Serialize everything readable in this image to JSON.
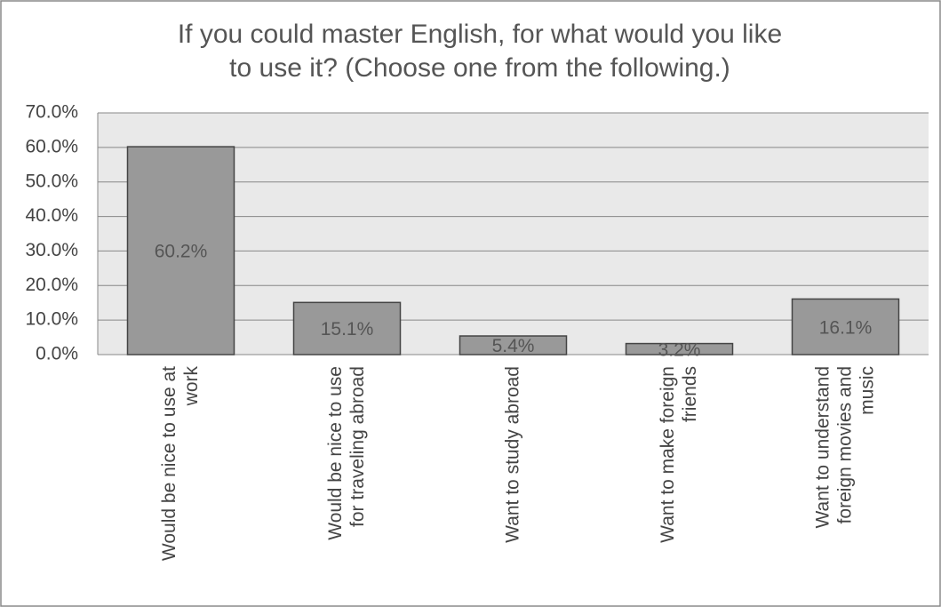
{
  "chart_data": {
    "type": "bar",
    "title": [
      "If you could master English, for what would  you like",
      "to use it? (Choose one from the following.)"
    ],
    "categories": [
      "Would be nice to use at work",
      "Would be nice to use for traveling abroad",
      "Want to study abroad",
      "Want to make foreign friends",
      "Want to understand foreign movies and music"
    ],
    "values": [
      60.2,
      15.1,
      5.4,
      3.2,
      16.1
    ],
    "value_labels": [
      "60.2%",
      "15.1%",
      "5.4%",
      "3.2%",
      "16.1%"
    ],
    "color": "#999999",
    "ylim": [
      0,
      70
    ],
    "yticks": [
      {
        "value": 0,
        "label": "0.0%"
      },
      {
        "value": 10,
        "label": "10.0%"
      },
      {
        "value": 20,
        "label": "20.0%"
      },
      {
        "value": 30,
        "label": "30.0%"
      },
      {
        "value": 40,
        "label": "40.0%"
      },
      {
        "value": 50,
        "label": "50.0%"
      },
      {
        "value": 60,
        "label": "60.0%"
      },
      {
        "value": 70,
        "label": "70.0%"
      }
    ],
    "grid": true
  }
}
